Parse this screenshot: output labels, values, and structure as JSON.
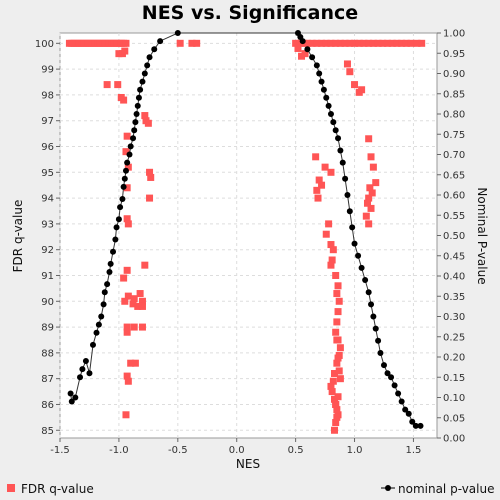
{
  "chart_data": {
    "type": "scatter",
    "title": "NES vs. Significance",
    "xlabel": "NES",
    "ylabel": "FDR q-value",
    "y2label": "Nominal P-value",
    "xlim": [
      -1.5,
      1.7
    ],
    "ylim": [
      84.7,
      100.4
    ],
    "y2lim": [
      0.0,
      1.0
    ],
    "xticks": [
      "-1.5",
      "-1.0",
      "-0.5",
      "0.0",
      "0.5",
      "1.0",
      "1.5"
    ],
    "yticks": [
      "85",
      "86",
      "87",
      "88",
      "89",
      "90",
      "91",
      "92",
      "93",
      "94",
      "95",
      "96",
      "97",
      "98",
      "99",
      "100"
    ],
    "y2ticks": [
      "0.00",
      "0.05",
      "0.10",
      "0.15",
      "0.20",
      "0.25",
      "0.30",
      "0.35",
      "0.40",
      "0.45",
      "0.50",
      "0.55",
      "0.60",
      "0.65",
      "0.70",
      "0.75",
      "0.80",
      "0.85",
      "0.90",
      "0.95",
      "1.00"
    ],
    "grid": true,
    "legend": "bottom",
    "colors": {
      "fdr": "#ff5555",
      "nominal": "#000000",
      "line": "#333333",
      "grid": "#dddddd",
      "plot_bg": "#ffffff",
      "page_bg": "#eeeeee"
    },
    "series": [
      {
        "name": "FDR q-value",
        "marker": "square",
        "axis": "left",
        "x": [
          -1.42,
          -1.4,
          -1.38,
          -1.36,
          -1.34,
          -1.32,
          -1.3,
          -1.28,
          -1.26,
          -1.24,
          -1.22,
          -1.2,
          -1.18,
          -1.16,
          -1.14,
          -1.12,
          -1.1,
          -1.08,
          -1.06,
          -1.04,
          -1.02,
          -1.0,
          -0.98,
          -0.96,
          -0.94,
          -0.48,
          -0.38,
          -0.34,
          0.5,
          0.54,
          0.57,
          0.6,
          0.64,
          0.68,
          0.72,
          0.76,
          0.8,
          0.84,
          0.88,
          0.92,
          0.96,
          1.0,
          1.04,
          1.08,
          1.12,
          1.16,
          1.2,
          1.24,
          1.28,
          1.32,
          1.36,
          1.4,
          1.44,
          1.48,
          1.53,
          1.57,
          -1.0,
          -0.97,
          -0.95,
          -1.1,
          -1.01,
          -0.98,
          -0.96,
          -0.78,
          -0.77,
          -0.75,
          -0.93,
          -0.94,
          -0.92,
          -0.74,
          -0.73,
          -0.74,
          -0.93,
          -0.93,
          -0.92,
          -0.78,
          -0.93,
          -0.96,
          -0.92,
          -0.87,
          -0.82,
          -0.8,
          -0.95,
          -0.88,
          -0.84,
          -0.8,
          -0.93,
          -0.87,
          -0.8,
          -0.93,
          -0.9,
          -0.86,
          -0.93,
          -0.92,
          -0.94,
          0.55,
          0.52,
          0.58,
          0.67,
          0.75,
          0.8,
          0.7,
          0.72,
          0.68,
          0.69,
          0.78,
          0.76,
          0.8,
          0.82,
          0.81,
          0.8,
          0.84,
          0.86,
          0.85,
          0.87,
          0.86,
          0.85,
          0.84,
          0.86,
          0.88,
          0.87,
          0.85,
          0.83,
          0.82,
          0.8,
          0.81,
          0.83,
          0.84,
          0.85,
          0.86,
          0.84,
          0.83,
          0.85,
          0.84,
          0.86,
          0.88,
          0.87,
          0.86,
          0.85,
          0.94,
          0.96,
          1.0,
          1.04,
          1.06,
          1.12,
          1.14,
          1.16,
          1.18,
          1.13,
          1.15,
          1.12,
          1.11,
          1.14,
          1.1,
          1.12
        ],
        "y": [
          100,
          100,
          100,
          100,
          100,
          100,
          100,
          100,
          100,
          100,
          100,
          100,
          100,
          100,
          100,
          100,
          100,
          100,
          100,
          100,
          100,
          100,
          100,
          100,
          100,
          100,
          100,
          100,
          100,
          100,
          100,
          100,
          100,
          100,
          100,
          100,
          100,
          100,
          100,
          100,
          100,
          100,
          100,
          100,
          100,
          100,
          100,
          100,
          100,
          100,
          100,
          100,
          100,
          100,
          100,
          100,
          99.6,
          99.6,
          99.7,
          98.4,
          98.4,
          97.9,
          97.8,
          97.2,
          97.0,
          96.9,
          96.4,
          95.8,
          95.2,
          95.0,
          94.8,
          94.0,
          94.4,
          93.2,
          93.0,
          91.4,
          91.2,
          90.9,
          90.2,
          90.1,
          90.3,
          90.0,
          90.0,
          89.9,
          89.8,
          89.8,
          89.0,
          89.0,
          89.0,
          88.8,
          87.6,
          87.6,
          87.1,
          86.9,
          85.6,
          99.5,
          99.8,
          99.6,
          95.6,
          95.2,
          95.0,
          94.7,
          94.5,
          94.3,
          94.0,
          93.0,
          92.6,
          92.2,
          92.0,
          91.6,
          91.4,
          91.0,
          90.6,
          90.3,
          90.0,
          89.6,
          89.2,
          88.8,
          88.5,
          88.2,
          87.9,
          87.6,
          87.2,
          86.9,
          86.7,
          86.5,
          86.2,
          86.0,
          85.8,
          85.6,
          85.3,
          85.0,
          85.5,
          86.0,
          86.3,
          87.0,
          87.3,
          87.8,
          88.5,
          99.2,
          98.9,
          98.4,
          98.1,
          98.2,
          96.3,
          95.6,
          95.2,
          94.6,
          94.4,
          94.2,
          94.0,
          93.8,
          93.6,
          93.3,
          93.0
        ]
      },
      {
        "name": "nominal p-value",
        "marker": "circle",
        "axis": "right",
        "connected": true,
        "x": [
          -1.41,
          -1.4,
          -1.37,
          -1.33,
          -1.31,
          -1.28,
          -1.25,
          -1.22,
          -1.19,
          -1.17,
          -1.15,
          -1.13,
          -1.12,
          -1.1,
          -1.08,
          -1.07,
          -1.05,
          -1.03,
          -1.02,
          -1.0,
          -0.99,
          -0.97,
          -0.96,
          -0.95,
          -0.94,
          -0.93,
          -0.91,
          -0.9,
          -0.88,
          -0.87,
          -0.86,
          -0.85,
          -0.84,
          -0.83,
          -0.82,
          -0.8,
          -0.78,
          -0.76,
          -0.74,
          -0.7,
          -0.65,
          -0.5,
          0.52,
          0.54,
          0.56,
          0.6,
          0.64,
          0.68,
          0.7,
          0.72,
          0.74,
          0.76,
          0.78,
          0.8,
          0.82,
          0.84,
          0.86,
          0.88,
          0.9,
          0.92,
          0.94,
          0.96,
          0.98,
          1.0,
          1.03,
          1.06,
          1.09,
          1.12,
          1.14,
          1.16,
          1.18,
          1.2,
          1.22,
          1.25,
          1.28,
          1.31,
          1.34,
          1.37,
          1.4,
          1.43,
          1.46,
          1.49,
          1.52,
          1.56
        ],
        "y": [
          0.11,
          0.09,
          0.1,
          0.15,
          0.17,
          0.19,
          0.16,
          0.23,
          0.26,
          0.28,
          0.3,
          0.33,
          0.36,
          0.38,
          0.41,
          0.43,
          0.46,
          0.49,
          0.52,
          0.54,
          0.57,
          0.59,
          0.62,
          0.64,
          0.66,
          0.68,
          0.7,
          0.72,
          0.74,
          0.76,
          0.78,
          0.8,
          0.82,
          0.84,
          0.86,
          0.88,
          0.9,
          0.92,
          0.94,
          0.96,
          0.98,
          1.0,
          1.0,
          0.99,
          0.98,
          0.96,
          0.94,
          0.92,
          0.9,
          0.88,
          0.86,
          0.84,
          0.82,
          0.8,
          0.78,
          0.76,
          0.74,
          0.71,
          0.68,
          0.64,
          0.6,
          0.56,
          0.52,
          0.48,
          0.45,
          0.42,
          0.39,
          0.36,
          0.33,
          0.3,
          0.27,
          0.24,
          0.21,
          0.18,
          0.16,
          0.15,
          0.13,
          0.11,
          0.09,
          0.07,
          0.06,
          0.04,
          0.03,
          0.03
        ]
      }
    ]
  }
}
